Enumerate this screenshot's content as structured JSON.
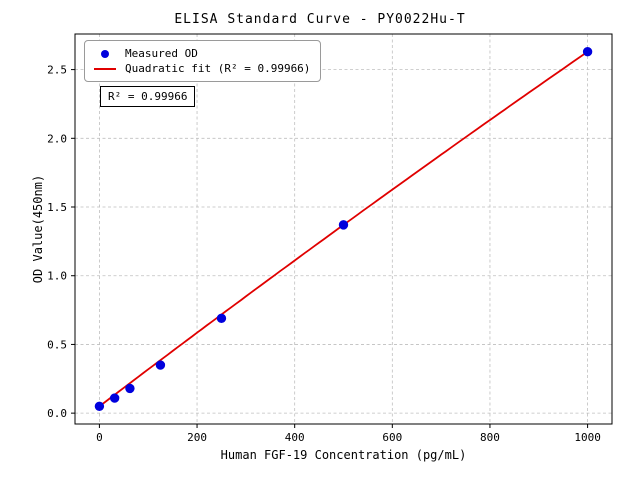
{
  "chart_data": {
    "type": "scatter",
    "title": "ELISA Standard Curve - PY0022Hu-T",
    "xlabel": "Human FGF-19 Concentration (pg/mL)",
    "ylabel": "OD Value(450nm)",
    "xlim": [
      -50,
      1050
    ],
    "ylim": [
      -0.079,
      2.759
    ],
    "x_ticks": [
      0,
      200,
      400,
      600,
      800,
      1000
    ],
    "y_ticks": [
      0.0,
      0.5,
      1.0,
      1.5,
      2.0,
      2.5
    ],
    "grid": true,
    "legend_position": "upper-left",
    "series": [
      {
        "name": "Measured OD",
        "kind": "scatter",
        "color": "#0000dd",
        "x": [
          0,
          31.25,
          62.5,
          125,
          250,
          500,
          1000
        ],
        "y": [
          0.05,
          0.11,
          0.18,
          0.35,
          0.69,
          1.37,
          2.63
        ]
      },
      {
        "name": "Quadratic fit (R² = 0.99966)",
        "kind": "line",
        "color": "#e00000",
        "fit": {
          "form": "quadratic",
          "a": -1.2e-07,
          "b": 0.0027,
          "c": 0.05,
          "x_range": [
            0,
            1000
          ]
        }
      }
    ],
    "annotation": "R² = 0.99966",
    "r_squared": 0.99966
  },
  "colors": {
    "grid": "#bfbfbf",
    "axis": "#000000"
  }
}
